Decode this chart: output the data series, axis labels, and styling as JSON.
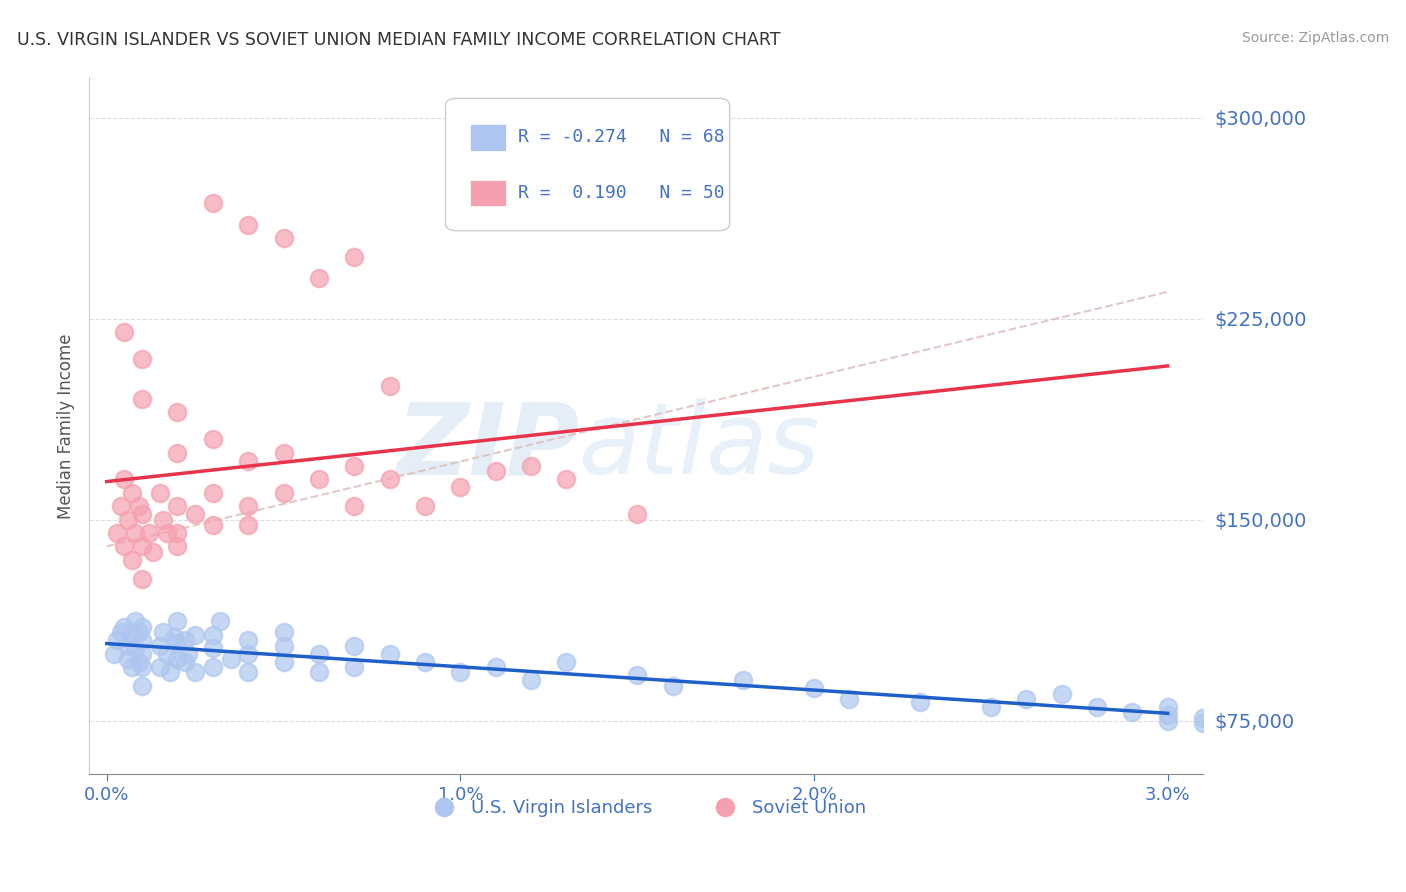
{
  "title": "U.S. VIRGIN ISLANDER VS SOVIET UNION MEDIAN FAMILY INCOME CORRELATION CHART",
  "source": "Source: ZipAtlas.com",
  "ylabel": "Median Family Income",
  "x_min": 0.0,
  "x_max": 0.03,
  "y_min": 55000,
  "y_max": 315000,
  "y_ticks": [
    75000,
    150000,
    225000,
    300000
  ],
  "y_tick_labels": [
    "$75,000",
    "$150,000",
    "$225,000",
    "$300,000"
  ],
  "x_ticks": [
    0.0,
    0.01,
    0.02,
    0.03
  ],
  "x_tick_labels": [
    "0.0%",
    "1.0%",
    "2.0%",
    "3.0%"
  ],
  "r_blue": -0.274,
  "n_blue": 68,
  "r_pink": 0.19,
  "n_pink": 50,
  "blue_color": "#aec6ef",
  "blue_line_color": "#1f5fc9",
  "pink_color": "#f5a0b0",
  "pink_line_color": "#e8334a",
  "gray_dashed_color": "#ddaaaa",
  "legend_label_blue": "U.S. Virgin Islanders",
  "legend_label_pink": "Soviet Union",
  "watermark_zip": "ZIP",
  "watermark_atlas": "atlas",
  "blue_scatter_x": [
    0.0002,
    0.0003,
    0.0004,
    0.0005,
    0.0006,
    0.0006,
    0.0007,
    0.0007,
    0.0008,
    0.0008,
    0.0009,
    0.0009,
    0.001,
    0.001,
    0.001,
    0.001,
    0.001,
    0.0015,
    0.0015,
    0.0016,
    0.0017,
    0.0018,
    0.0019,
    0.002,
    0.002,
    0.002,
    0.0022,
    0.0022,
    0.0023,
    0.0025,
    0.0025,
    0.003,
    0.003,
    0.003,
    0.0032,
    0.0035,
    0.004,
    0.004,
    0.004,
    0.005,
    0.005,
    0.005,
    0.006,
    0.006,
    0.007,
    0.007,
    0.008,
    0.009,
    0.01,
    0.011,
    0.012,
    0.013,
    0.015,
    0.016,
    0.018,
    0.02,
    0.021,
    0.023,
    0.025,
    0.026,
    0.027,
    0.028,
    0.029,
    0.03,
    0.03,
    0.03,
    0.031,
    0.031
  ],
  "blue_scatter_y": [
    100000,
    105000,
    108000,
    110000,
    98000,
    103000,
    95000,
    107000,
    102000,
    112000,
    97000,
    108000,
    100000,
    105000,
    110000,
    95000,
    88000,
    103000,
    95000,
    108000,
    100000,
    93000,
    106000,
    98000,
    104000,
    112000,
    97000,
    105000,
    100000,
    93000,
    107000,
    102000,
    95000,
    107000,
    112000,
    98000,
    105000,
    100000,
    93000,
    103000,
    97000,
    108000,
    100000,
    93000,
    103000,
    95000,
    100000,
    97000,
    93000,
    95000,
    90000,
    97000,
    92000,
    88000,
    90000,
    87000,
    83000,
    82000,
    80000,
    83000,
    85000,
    80000,
    78000,
    75000,
    77000,
    80000,
    76000,
    74000
  ],
  "pink_scatter_x": [
    0.0003,
    0.0004,
    0.0005,
    0.0005,
    0.0006,
    0.0007,
    0.0007,
    0.0008,
    0.0009,
    0.001,
    0.001,
    0.001,
    0.0012,
    0.0013,
    0.0015,
    0.0016,
    0.0017,
    0.002,
    0.002,
    0.002,
    0.0025,
    0.003,
    0.003,
    0.004,
    0.004,
    0.005,
    0.005,
    0.006,
    0.007,
    0.007,
    0.008,
    0.009,
    0.01,
    0.011,
    0.012,
    0.013,
    0.003,
    0.004,
    0.005,
    0.006,
    0.007,
    0.008,
    0.015,
    0.004,
    0.003,
    0.002,
    0.001,
    0.001,
    0.0005,
    0.002
  ],
  "pink_scatter_y": [
    145000,
    155000,
    140000,
    165000,
    150000,
    135000,
    160000,
    145000,
    155000,
    128000,
    140000,
    152000,
    145000,
    138000,
    160000,
    150000,
    145000,
    140000,
    155000,
    145000,
    152000,
    148000,
    160000,
    155000,
    148000,
    160000,
    175000,
    165000,
    170000,
    155000,
    165000,
    155000,
    162000,
    168000,
    170000,
    165000,
    268000,
    260000,
    255000,
    240000,
    248000,
    200000,
    152000,
    172000,
    180000,
    175000,
    195000,
    210000,
    220000,
    190000
  ]
}
